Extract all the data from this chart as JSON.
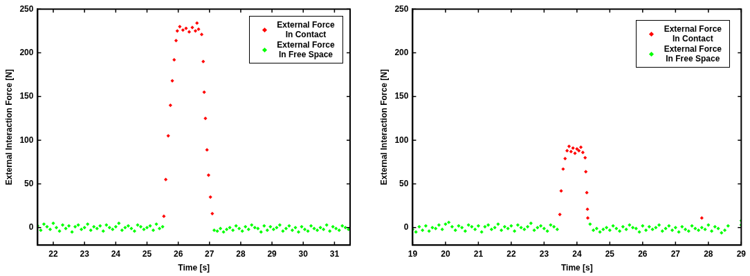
{
  "chart_data": [
    {
      "type": "scatter",
      "xlabel": "Time [s]",
      "ylabel": "External Interaction Force [N]",
      "xlim": [
        21.5,
        31.5
      ],
      "xticks": [
        22,
        23,
        24,
        25,
        26,
        27,
        28,
        29,
        30,
        31
      ],
      "ylim": [
        -20,
        250
      ],
      "yticks": [
        0,
        50,
        100,
        150,
        200,
        250
      ],
      "grid": false,
      "legend": "top right",
      "marker": "diamond",
      "series": [
        {
          "name": "External Force In Contact",
          "color": "#ff0000",
          "x": [
            25.54,
            25.6,
            25.68,
            25.75,
            25.81,
            25.87,
            25.93,
            25.97,
            26.05,
            26.15,
            26.25,
            26.35,
            26.45,
            26.55,
            26.6,
            26.65,
            26.75,
            26.8,
            26.83,
            26.87,
            26.92,
            26.97,
            27.03,
            27.09
          ],
          "values": [
            13,
            55,
            105,
            140,
            168,
            192,
            214,
            225,
            230,
            226,
            228,
            224,
            229,
            225,
            234,
            227,
            221,
            190,
            155,
            125,
            89,
            60,
            35,
            16
          ]
        },
        {
          "name": "External Force In Free Space",
          "color": "#00ff00",
          "x": [
            21.5,
            21.6,
            21.7,
            21.8,
            21.9,
            22.0,
            22.1,
            22.2,
            22.3,
            22.4,
            22.5,
            22.6,
            22.7,
            22.8,
            22.9,
            23.0,
            23.1,
            23.2,
            23.3,
            23.4,
            23.5,
            23.6,
            23.7,
            23.8,
            23.9,
            24.0,
            24.1,
            24.2,
            24.3,
            24.4,
            24.5,
            24.6,
            24.7,
            24.8,
            24.9,
            25.0,
            25.1,
            25.2,
            25.3,
            25.4,
            25.5,
            27.15,
            27.25,
            27.35,
            27.45,
            27.55,
            27.65,
            27.75,
            27.85,
            27.95,
            28.05,
            28.15,
            28.25,
            28.35,
            28.45,
            28.55,
            28.65,
            28.75,
            28.85,
            28.95,
            29.05,
            29.15,
            29.25,
            29.35,
            29.45,
            29.55,
            29.65,
            29.75,
            29.85,
            29.95,
            30.05,
            30.15,
            30.25,
            30.35,
            30.45,
            30.55,
            30.65,
            30.75,
            30.85,
            30.95,
            31.05,
            31.15,
            31.25,
            31.35,
            31.45
          ],
          "values": [
            2,
            -3,
            4,
            1,
            -2,
            5,
            0,
            -4,
            3,
            -1,
            2,
            -5,
            1,
            3,
            -2,
            0,
            4,
            -3,
            1,
            -1,
            2,
            -4,
            3,
            0,
            -2,
            1,
            5,
            -3,
            0,
            2,
            -1,
            -4,
            3,
            1,
            -2,
            0,
            2,
            -3,
            4,
            -1,
            1,
            -3,
            -4,
            -1,
            -5,
            -2,
            0,
            -3,
            2,
            -1,
            -4,
            1,
            -2,
            3,
            0,
            -1,
            -5,
            2,
            -3,
            1,
            -2,
            0,
            3,
            -4,
            -1,
            2,
            -3,
            0,
            -5,
            1,
            -2,
            -4,
            2,
            -1,
            -3,
            0,
            -2,
            3,
            -4,
            1,
            -1,
            -3,
            2,
            0,
            -2
          ]
        }
      ]
    },
    {
      "type": "scatter",
      "xlabel": "Time [s]",
      "ylabel": "External Interaction Force [N]",
      "xlim": [
        19,
        29
      ],
      "xticks": [
        19,
        20,
        21,
        22,
        23,
        24,
        25,
        26,
        27,
        28,
        29
      ],
      "ylim": [
        -20,
        250
      ],
      "yticks": [
        0,
        50,
        100,
        150,
        200,
        250
      ],
      "grid": false,
      "legend": "top right",
      "marker": "diamond",
      "series": [
        {
          "name": "External Force In Contact",
          "color": "#ff0000",
          "x": [
            23.48,
            23.52,
            23.58,
            23.64,
            23.7,
            23.76,
            23.82,
            23.88,
            23.94,
            24.0,
            24.06,
            24.12,
            24.18,
            24.25,
            24.27,
            24.3,
            24.32,
            24.33,
            27.8
          ],
          "values": [
            15,
            42,
            67,
            79,
            88,
            93,
            87,
            91,
            85,
            90,
            88,
            92,
            86,
            80,
            64,
            40,
            21,
            11,
            11
          ]
        },
        {
          "name": "External Force In Free Space",
          "color": "#00ff00",
          "x": [
            19.0,
            19.1,
            19.2,
            19.3,
            19.4,
            19.5,
            19.6,
            19.7,
            19.8,
            19.9,
            20.0,
            20.1,
            20.2,
            20.3,
            20.4,
            20.5,
            20.6,
            20.7,
            20.8,
            20.9,
            21.0,
            21.1,
            21.2,
            21.3,
            21.4,
            21.5,
            21.6,
            21.7,
            21.8,
            21.9,
            22.0,
            22.1,
            22.2,
            22.3,
            22.4,
            22.5,
            22.6,
            22.7,
            22.8,
            22.9,
            23.0,
            23.1,
            23.2,
            23.3,
            23.4,
            24.4,
            24.5,
            24.6,
            24.7,
            24.8,
            24.9,
            25.0,
            25.1,
            25.2,
            25.3,
            25.4,
            25.5,
            25.6,
            25.7,
            25.8,
            25.9,
            26.0,
            26.1,
            26.2,
            26.3,
            26.4,
            26.5,
            26.6,
            26.7,
            26.8,
            26.9,
            27.0,
            27.1,
            27.2,
            27.3,
            27.4,
            27.5,
            27.6,
            27.7,
            27.8,
            27.9,
            28.0,
            28.1,
            28.2,
            28.3,
            28.4,
            28.5,
            28.6,
            29.0,
            29.0
          ],
          "values": [
            -2,
            -5,
            1,
            -3,
            2,
            -4,
            0,
            -1,
            3,
            -2,
            4,
            6,
            1,
            -3,
            2,
            0,
            -4,
            3,
            1,
            -2,
            2,
            -5,
            1,
            3,
            -2,
            0,
            4,
            -3,
            1,
            -1,
            2,
            -4,
            3,
            0,
            -2,
            1,
            5,
            -3,
            0,
            2,
            -1,
            -4,
            3,
            1,
            -2,
            4,
            -3,
            -1,
            -5,
            -2,
            0,
            -3,
            2,
            -1,
            -4,
            1,
            -2,
            3,
            0,
            -1,
            -5,
            2,
            -3,
            1,
            -2,
            0,
            3,
            -4,
            -1,
            2,
            -3,
            0,
            -5,
            1,
            -2,
            -4,
            2,
            -1,
            -3,
            0,
            -2,
            3,
            -4,
            1,
            -1,
            -6,
            -3,
            2,
            3,
            8
          ]
        }
      ]
    }
  ]
}
